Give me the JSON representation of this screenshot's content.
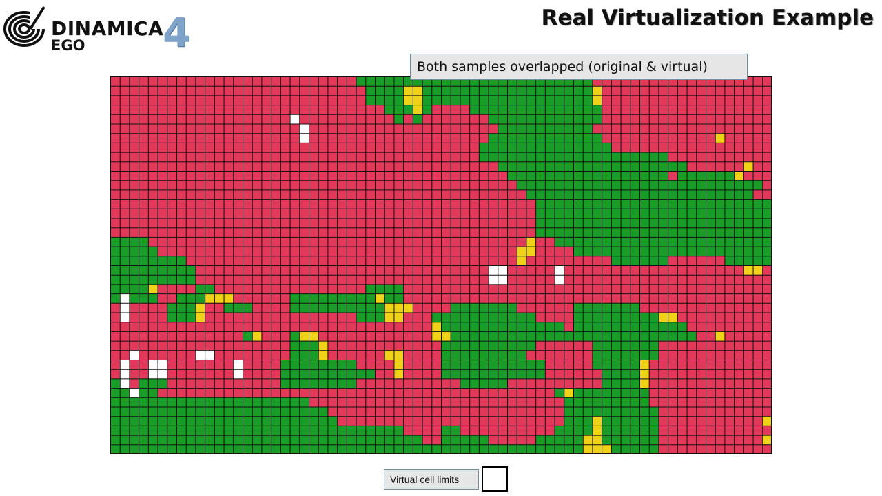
{
  "brand": {
    "name": "DINAMICA",
    "sub": "EGO",
    "version": "4",
    "logo_icon": "spiral-logo-icon"
  },
  "title": "Real Virtualization Example",
  "callout": "Both samples overlapped (original & virtual)",
  "legend": {
    "label": "Virtual cell limits",
    "swatch_icon": "empty-square-icon"
  },
  "grid": {
    "cols": 70,
    "rows": 40,
    "colors": {
      "R": "#e2395b",
      "G": "#1a9c28",
      "Y": "#f0d318",
      "W": "#ffffff"
    },
    "cell_rows": [
      "RRRRRRRRRRRRRRRRRRRRRRRRRRGGGGGGGGGGGGGGGGGGGGGGGGGRRRRRRRRRRRRRRRRRRR",
      "RRRRRRRRRRRRRRRRRRRRRRRRRRRGGGGYYGGGGGGGGGGGGGGGGGGYRRRRRRRRRRRRRRRRRR",
      "RRRRRRRRRRRRRRRRRRRRRRRRRRRGGGGYYGGGGGGGGGGGGGGGGGGYRRRRRRRRRRRRRRRRRR",
      "RRRRRRRRRRRRRRRRRRRRRRRRRRRRRGGGYGRRRRGGGGGGGGGGGGGGRRRRRRRRRRRRRRRRRR",
      "RRRRRRRRRRRRRRRRRRRWRRRRRRRRRRGRGRRRRRRRGGGGGGGGGGGGRRRRRRRRRRRRRRRRRR",
      "RRRRRRRRRRRRRRRRRRRRWRRRRRRRRRRRRRRRRRRRRGGGGGGGGGGRRRRRRRRRRRRRRRRRRR",
      "RRRRRRRRRRRRRRRRRRRRWRRRRRRRRRRRRRRRRRRRGGGGGGGGGGGGRRRRRRRRRRRRYRRRRR",
      "RRRRRRRRRRRRRRRRRRRRRRRRRRRRRRRRRRRRRRRGGGGGGGGGGGGGGRRRRRRRRRRRRRRRRR",
      "RRRRRRRRRRRRRRRRRRRRRRRRRRRRRRRRRRRRRRRGGGGGGGGGGGGGGGGGGGGRRRRRRRRRRR",
      "RRRRRRRRRRRRRRRRRRRRRRRRRRRRRRRRRRRRRRRRRGGGGGGGGGGGGGGGGGGGGRRRRRRYRR",
      "RRRRRRRRRRRRRRRRRRRRRRRRRRRRRRRRRRRRRRRRRRGGGGGGGGGGGGGGGGGRGGGGGGYRRR",
      "RRRRRRRRRRRRRRRRRRRRRRRRRRRRRRRRRRRRRRRRRRRGGGGGGGGGGGGGGGGGGGGGGGGGGR",
      "RRRRRRRRRRRRRRRRRRRRRRRRRRRRRRRRRRRRRRRRRRRRGGGGGGGGGGGGGGGGGGGGGGGGRR",
      "RRRRRRRRRRRRRRRRRRRRRRRRRRRRRRRRRRRRRRRRRRRRRGGGGGGGGGGGGGGGGGGGGGGGGG",
      "RRRRRRRRRRRRRRRRRRRRRRRRRRRRRRRRRRRRRRRRRRRRRGGGGGGGGGGGGGGGGGGGGGGGGG",
      "RRRRRRRRRRRRRRRRRRRRRRRRRRRRRRRRRRRRRRRRRRRRRGGGGGGGGGGGGGGGGGGGGGGGGG",
      "RRRRRRRRRRRRRRRRRRRRRRRRRRRRRRRRRRRRRRRRRRRRRGGGGGGGGGGGGGGGGGGGGGGGGG",
      "GGGGRRRRRRRRRRRRRRRRRRRRRRRRRRRRRRRRRRRRRRRRYRRGGGGGGGGGGGGGGGGGGGGGGG",
      "GGGGGRRRRRRRRRRRRRRRRRRRRRRRRRRRRRRRRRRRRRRYYRRRRGGGGGGGGGGGGGGGGGGGGG",
      "GGGGGGGGRRRRRRRRRRRRRRRRRRRRRRRRRRRRRRRRRRRYRRRRRRRRRGGGGGGRRRRRRGGGGG",
      "GGGGGGGGGRRRRRRRRRRRRRRRRRRRRRRRRRRRRRRRWWRRRRRWRRRRRRRRRRRRRRRRRRRYYR",
      "GGGGGGGGGRRRRRRRRRRRRRRRRRRRRRRRRRRRRRRRWWRRRRRWRRRRRRRRRRRRRRRRRRRRRR",
      "GGGGYRRRRGGRRRRRRRRRRRRRRRRGGGGRRRRRRRRRRRRRRRRRRRRRRRRRRRRRRRRRRRRRRR",
      "GWGGGRRGGGYYYRRRRRRGGGGGGGGGYGGRRRRRRRRRRRRRRRRRRRRRRRRRRRRRRRRRRRRRRR",
      "RWRRRRGGGYRRGGGRRRRGGGGGGGGGGYYYRRRRGGGGGGGRRRRRRGGGGGGGRRRRRRRRRRRRRR",
      "RWRRRRGGGYRRRRRRRRRRRRRRRRGGGYYRRRGGGGGGGGGGGRRRRGGGGGGGGGYYRRRRRRRRRR",
      "RRRRRRRRRRRRRRRRRRRRRRRRRRRRRRRRRRYGGGGGGGGGGGGGRGGGGGGGGGGGGRRRRRRRRR",
      "RRRRRRRRRRRRRRGYRRRGYYRRRRRRRRRRRRYYGGGGGGGGGGGGGGGGGGGGGGGGGGRRYRRRRR",
      "RRRRRRRRRRRRRRRRRRRGGGYRRRRRRRRRRRRGGGGGGGGGGRRRRRRGGGGGGGRRRRRRRRRRRR",
      "RRWRRRRRRWWRRRRRRRRGGGYRRRRRRYYRRRRGGGGGGGGGRRRRRRRGGGGGGGRRRRRRRRRRRR",
      "RWRRWWRRRRRRRWRRRRGGGGGGGGRRRRYRRRRGGGGGGGGGGGRRRRRGGGGGYRRRRRRRRRRRRR",
      "RWRRWWRRRRRRRWRRRRGGGGGGGGGGRRYRRRRGGGGGGGGGGGRRRRRRGGGGYRRRRRRRRRRRRR",
      "GWRGGGRRRRRRRRRRRRGGGGGGGGRRRRRRRRRRRGGGGGRRRRRRRRRRGGGGYRRRRRRRRRRRRR",
      "GGWGGRRRRRRRRRRRRRRRRRRRRRRRRRRRRRRRRRRRRRRRRRRGYGGGGGGGGRRRRRRRRRRRRR",
      "GGGGGGGGGGGGGGGGGGGGGRRRRRRRRRRRRRRRRRRRRRRRRRRRGGGGGGGGGRRRRRRRRRRRRR",
      "GGGGGGGGGGGGGGGGGGGGGGGRRRRRRRRRRRRRRRRRRRRRRRRRGGGGGGGGGGRRRRRRRRRRRR",
      "GGGGGGGGGGGGGGGGGGGGGGGGRRRRRRRRRRRRRRRRRRRRRRRRGGGYGGGGGGRRRRRRRRRRRY",
      "GGGGGGGGGGGGGGGGGGGGGGGGGGGGGGGRRRRGGRRRRRRRRRRGGGGYGGGGGGRRRRRRRRRRRR",
      "GGGGGGGGGGGGGGGGGGGGGGGGGGGGGGGGGRRGGGGGRRRRRGGGGGYYGGGGGGRRRRRRRRRRRY",
      "GGGGGGGGGGGGGGGGGGGGGGGGGGGGGGGGGGGGGGGGGGGGGGGGGGYYYGGGGGRRRRRRRRRRRR"
    ]
  }
}
